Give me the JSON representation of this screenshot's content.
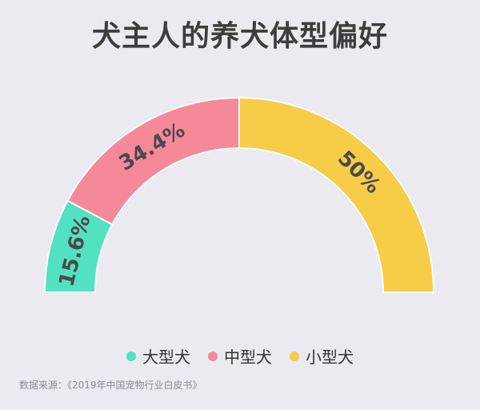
{
  "title": "犬主人的养犬体型偏好",
  "source": "数据来源：《2019年中国宠物行业白皮书》",
  "chart_data": {
    "type": "pie",
    "subtype": "half-donut",
    "title": "犬主人的养犬体型偏好",
    "categories": [
      "大型犬",
      "中型犬",
      "小型犬"
    ],
    "values": [
      15.6,
      34.4,
      50
    ],
    "labels": [
      "15.6%",
      "34.4%",
      "50%"
    ],
    "colors": [
      "#52e2c2",
      "#f5899a",
      "#f7cc47"
    ],
    "legend_position": "bottom"
  },
  "legend": [
    {
      "label": "大型犬",
      "color": "#52e2c2"
    },
    {
      "label": "中型犬",
      "color": "#f5899a"
    },
    {
      "label": "小型犬",
      "color": "#f7cc47"
    }
  ]
}
